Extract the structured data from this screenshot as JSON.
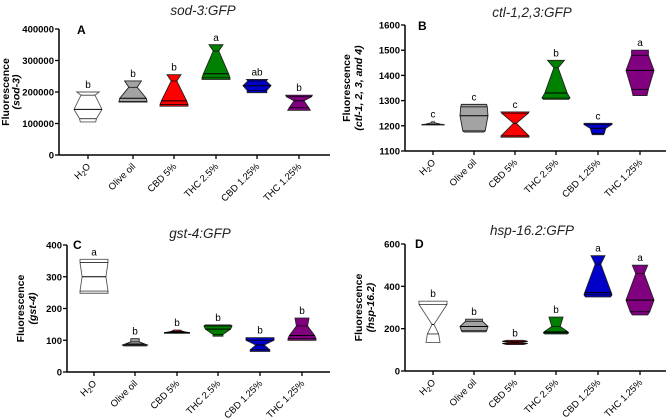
{
  "chart_data": [
    {
      "type": "violin",
      "panel_label": "A",
      "title": "sod-3:GFP",
      "ylabel": "Fluorescence",
      "ylabel_gene": "sod-3",
      "ylim": [
        0,
        400000
      ],
      "yticks": [
        "0",
        "100000",
        "200000",
        "300000",
        "400000"
      ],
      "categories": [
        "H2O",
        "Olive oil",
        "CBD 5%",
        "THC 2.5%",
        "CBD 1.25%",
        "THC 1.25%"
      ],
      "series": [
        {
          "min": 105000,
          "q1": 115000,
          "median": 145000,
          "q3": 190000,
          "max": 200000,
          "density": [
            0.55,
            0.6,
            1,
            0.5,
            0.8
          ],
          "letter": "b"
        },
        {
          "min": 168000,
          "q1": 170000,
          "median": 180000,
          "q3": 215000,
          "max": 235000,
          "density": [
            1,
            1,
            0.95,
            0.3,
            0.6
          ],
          "letter": "b"
        },
        {
          "min": 155000,
          "q1": 160000,
          "median": 172000,
          "q3": 235000,
          "max": 255000,
          "density": [
            1,
            1,
            0.9,
            0.2,
            0.5
          ],
          "letter": "b"
        },
        {
          "min": 240000,
          "q1": 245000,
          "median": 258000,
          "q3": 330000,
          "max": 350000,
          "density": [
            1,
            1,
            0.9,
            0.2,
            0.5
          ],
          "letter": "a"
        },
        {
          "min": 198000,
          "q1": 205000,
          "median": 220000,
          "q3": 235000,
          "max": 240000,
          "density": [
            0.7,
            0.7,
            1,
            0.65,
            0.75
          ],
          "letter": "ab"
        },
        {
          "min": 142000,
          "q1": 150000,
          "median": 172000,
          "q3": 185000,
          "max": 190000,
          "density": [
            0.8,
            0.7,
            0.35,
            0.9,
            0.95
          ],
          "letter": "b"
        }
      ]
    },
    {
      "type": "violin",
      "panel_label": "B",
      "title": "ctl-1,2,3:GFP",
      "ylabel": "Fluorescence",
      "ylabel_gene": "ctl-1, 2, 3, and 4",
      "ylim": [
        1100,
        1600
      ],
      "yticks": [
        "1100",
        "1200",
        "1300",
        "1400",
        "1500",
        "1600"
      ],
      "categories": [
        "H2O",
        "Olive oil",
        "CBD 5%",
        "THC 2.5%",
        "CBD 1.25%",
        "THC 1.25%"
      ],
      "series": [
        {
          "min": 1203,
          "q1": 1205,
          "median": 1207,
          "q3": 1212,
          "max": 1218,
          "density": [
            0.8,
            0.8,
            0.5,
            0.15,
            0.05
          ],
          "letter": "c"
        },
        {
          "min": 1175,
          "q1": 1180,
          "median": 1240,
          "q3": 1275,
          "max": 1285,
          "density": [
            0.7,
            0.8,
            1,
            0.95,
            0.9
          ],
          "letter": "c"
        },
        {
          "min": 1155,
          "q1": 1160,
          "median": 1210,
          "q3": 1250,
          "max": 1255,
          "density": [
            1,
            1,
            0.1,
            0.95,
            1
          ],
          "letter": "c"
        },
        {
          "min": 1305,
          "q1": 1310,
          "median": 1330,
          "q3": 1430,
          "max": 1460,
          "density": [
            0.9,
            1,
            0.8,
            0.15,
            0.6
          ],
          "letter": "b"
        },
        {
          "min": 1165,
          "q1": 1170,
          "median": 1190,
          "q3": 1205,
          "max": 1210,
          "density": [
            0.4,
            0.45,
            0.55,
            1,
            1
          ],
          "letter": "c"
        },
        {
          "min": 1320,
          "q1": 1345,
          "median": 1420,
          "q3": 1480,
          "max": 1500,
          "density": [
            0.5,
            0.6,
            1,
            0.6,
            0.6
          ],
          "letter": "a"
        }
      ]
    },
    {
      "type": "violin",
      "panel_label": "C",
      "title": "gst-4:GFP",
      "ylabel": "Fluorescence",
      "ylabel_gene": "gst-4",
      "ylim": [
        0,
        400
      ],
      "yticks": [
        "0",
        "100",
        "200",
        "300",
        "400"
      ],
      "categories": [
        "H2O",
        "Olive oil",
        "CBD 5%",
        "THC 2.5%",
        "CBD 1.25%",
        "THC 1.25%"
      ],
      "series": [
        {
          "min": 248,
          "q1": 255,
          "median": 300,
          "q3": 345,
          "max": 355,
          "density": [
            1,
            1,
            0.85,
            1,
            1
          ],
          "letter": "a"
        },
        {
          "min": 82,
          "q1": 85,
          "median": 88,
          "q3": 95,
          "max": 105,
          "density": [
            0.8,
            0.9,
            0.7,
            0.3,
            0.3
          ],
          "letter": "b"
        },
        {
          "min": 122,
          "q1": 124,
          "median": 126,
          "q3": 128,
          "max": 132,
          "density": [
            0.9,
            0.9,
            0.6,
            0.4,
            0.25
          ],
          "letter": "b"
        },
        {
          "min": 113,
          "q1": 118,
          "median": 135,
          "q3": 145,
          "max": 148,
          "density": [
            0.35,
            0.35,
            0.9,
            1,
            0.9
          ],
          "letter": "b"
        },
        {
          "min": 65,
          "q1": 70,
          "median": 85,
          "q3": 100,
          "max": 108,
          "density": [
            0.7,
            0.7,
            0.3,
            1,
            1
          ],
          "letter": "b"
        },
        {
          "min": 100,
          "q1": 105,
          "median": 115,
          "q3": 145,
          "max": 170,
          "density": [
            1,
            1,
            0.9,
            0.4,
            0.5
          ],
          "letter": "b"
        }
      ]
    },
    {
      "type": "violin",
      "panel_label": "D",
      "title": "hsp-16.2:GFP",
      "ylabel": "Fluorescence",
      "ylabel_gene": "hsp-16.2",
      "ylim": [
        0,
        600
      ],
      "yticks": [
        "0",
        "200",
        "400",
        "600"
      ],
      "categories": [
        "H2O",
        "Olive oil",
        "CBD 5%",
        "THC 2.5%",
        "CBD 1.25%",
        "THC 1.25%"
      ],
      "series": [
        {
          "min": 135,
          "q1": 175,
          "median": 220,
          "q3": 315,
          "max": 330,
          "density": [
            0.5,
            0.4,
            0.05,
            1,
            1
          ],
          "letter": "b"
        },
        {
          "min": 185,
          "q1": 190,
          "median": 210,
          "q3": 235,
          "max": 245,
          "density": [
            0.85,
            0.9,
            1,
            0.6,
            0.6
          ],
          "letter": "b"
        },
        {
          "min": 125,
          "q1": 130,
          "median": 135,
          "q3": 140,
          "max": 145,
          "density": [
            0.6,
            0.9,
            0.3,
            0.9,
            0.6
          ],
          "letter": "b"
        },
        {
          "min": 175,
          "q1": 180,
          "median": 185,
          "q3": 210,
          "max": 255,
          "density": [
            0.8,
            0.9,
            0.85,
            0.3,
            0.5
          ],
          "letter": "b"
        },
        {
          "min": 350,
          "q1": 360,
          "median": 370,
          "q3": 505,
          "max": 545,
          "density": [
            0.9,
            1,
            0.95,
            0.2,
            0.5
          ],
          "letter": "a"
        },
        {
          "min": 265,
          "q1": 280,
          "median": 335,
          "q3": 460,
          "max": 500,
          "density": [
            0.55,
            0.7,
            1,
            0.3,
            0.55
          ],
          "letter": "a"
        }
      ]
    }
  ],
  "colors": [
    "#ffffff",
    "#a3a3a3",
    "#ff0000",
    "#008000",
    "#0000c8",
    "#800080"
  ]
}
